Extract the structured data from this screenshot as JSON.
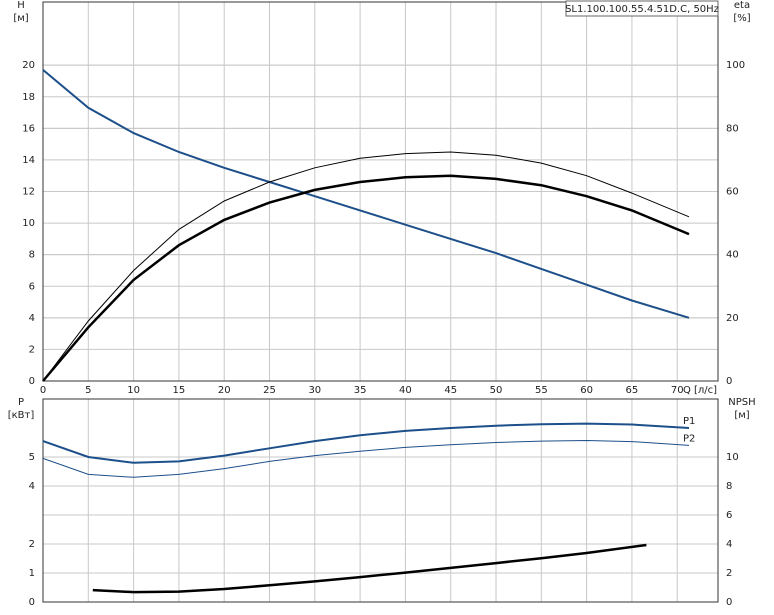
{
  "chart_data": [
    {
      "type": "line",
      "legend_box": "SL1.100.100.55.4.51D.C, 50Hz",
      "y_label": "H",
      "y_unit": "[м]",
      "y2_label": "eta",
      "y2_unit": "[%]",
      "x_label": "Q [л/с]",
      "xlim": [
        0,
        74.5
      ],
      "xticks": [
        0,
        5,
        10,
        15,
        20,
        25,
        30,
        35,
        40,
        45,
        50,
        55,
        60,
        65,
        70
      ],
      "ylim": [
        0,
        24
      ],
      "yticks": [
        0,
        2,
        4,
        6,
        8,
        10,
        12,
        14,
        16,
        18,
        20
      ],
      "y2lim": [
        0,
        120
      ],
      "y2ticks": [
        0,
        20,
        40,
        60,
        80,
        100
      ],
      "grid": true,
      "series": [
        {
          "color": "#1d4f8a",
          "x": [
            0,
            5,
            10,
            15,
            20,
            25,
            30,
            35,
            40,
            45,
            50,
            55,
            60,
            65,
            71.3
          ],
          "values": [
            19.7,
            17.3,
            15.7,
            14.5,
            13.5,
            12.6,
            11.7,
            10.8,
            9.9,
            9.0,
            8.1,
            7.1,
            6.1,
            5.1,
            4.0
          ]
        },
        {
          "color": "#000000",
          "axis": "y2",
          "x": [
            0,
            5,
            10,
            15,
            20,
            25,
            30,
            35,
            40,
            45,
            50,
            55,
            60,
            65,
            71.3
          ],
          "values": [
            0,
            19,
            35,
            48,
            57,
            63,
            67.5,
            70.5,
            72,
            72.5,
            71.5,
            69,
            65,
            59.5,
            52
          ]
        },
        {
          "color": "#000000",
          "axis": "y2",
          "x": [
            0,
            5,
            10,
            15,
            20,
            25,
            30,
            35,
            40,
            45,
            50,
            55,
            60,
            65,
            71.3
          ],
          "values": [
            0,
            17,
            32,
            43,
            51,
            56.5,
            60.5,
            63,
            64.5,
            65,
            64,
            62,
            58.5,
            54,
            46.5
          ]
        }
      ]
    },
    {
      "type": "line",
      "y_label": "P",
      "y_unit": "[кВт]",
      "y2_label": "NPSH",
      "y2_unit": "[м]",
      "xlim": [
        0,
        74.5
      ],
      "xticks": [
        0,
        5,
        10,
        15,
        20,
        25,
        30,
        35,
        40,
        45,
        50,
        55,
        60,
        65,
        70
      ],
      "ylim": [
        0,
        7
      ],
      "yticks": [
        0,
        1,
        2,
        4,
        5
      ],
      "y2lim": [
        0,
        14
      ],
      "y2ticks": [
        0,
        2,
        4,
        6,
        8,
        10
      ],
      "grid": true,
      "series": [
        {
          "name": "P1",
          "color": "#1d4f8a",
          "x": [
            0,
            5,
            10,
            15,
            20,
            25,
            30,
            35,
            40,
            45,
            50,
            55,
            60,
            65,
            71.3
          ],
          "values": [
            5.55,
            5.0,
            4.8,
            4.85,
            5.05,
            5.3,
            5.55,
            5.75,
            5.9,
            6.0,
            6.08,
            6.13,
            6.15,
            6.12,
            6.0
          ]
        },
        {
          "name": "P2",
          "color": "#1d4f8a",
          "x": [
            0,
            5,
            10,
            15,
            20,
            25,
            30,
            35,
            40,
            45,
            50,
            55,
            60,
            65,
            71.3
          ],
          "values": [
            4.95,
            4.4,
            4.3,
            4.4,
            4.6,
            4.85,
            5.05,
            5.2,
            5.33,
            5.42,
            5.5,
            5.55,
            5.57,
            5.53,
            5.4
          ]
        },
        {
          "color": "#000000",
          "axis": "y2",
          "x": [
            5.5,
            10,
            15,
            20,
            25,
            30,
            35,
            40,
            45,
            50,
            55,
            60,
            66.6
          ],
          "values": [
            0.82,
            0.68,
            0.72,
            0.9,
            1.15,
            1.42,
            1.72,
            2.03,
            2.35,
            2.68,
            3.02,
            3.38,
            3.93
          ]
        }
      ]
    }
  ]
}
